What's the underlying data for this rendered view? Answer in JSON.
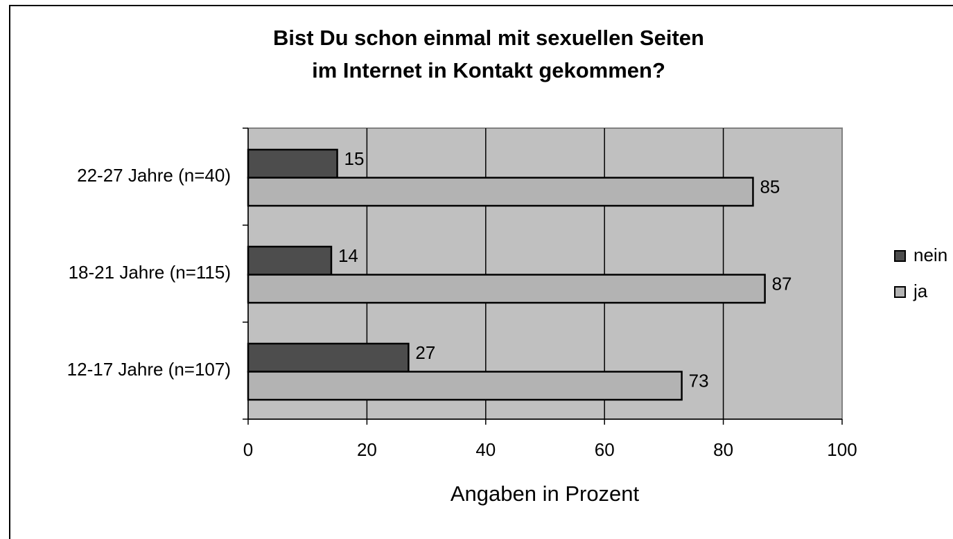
{
  "chart_data": {
    "type": "bar",
    "orientation": "horizontal",
    "title": [
      "Bist Du schon einmal mit sexuellen Seiten",
      "im Internet in Kontakt gekommen?"
    ],
    "categories": [
      "22-27 Jahre (n=40)",
      "18-21 Jahre (n=115)",
      "12-17 Jahre (n=107)"
    ],
    "series": [
      {
        "name": "nein",
        "color": "#4d4d4d",
        "values": [
          15,
          14,
          27
        ]
      },
      {
        "name": "ja",
        "color": "#b3b3b3",
        "values": [
          85,
          87,
          73
        ]
      }
    ],
    "xlabel": "Angaben in Prozent",
    "xlim": [
      0,
      100
    ],
    "xticks": [
      0,
      20,
      40,
      60,
      80,
      100
    ],
    "grid": true,
    "legend": "right"
  }
}
